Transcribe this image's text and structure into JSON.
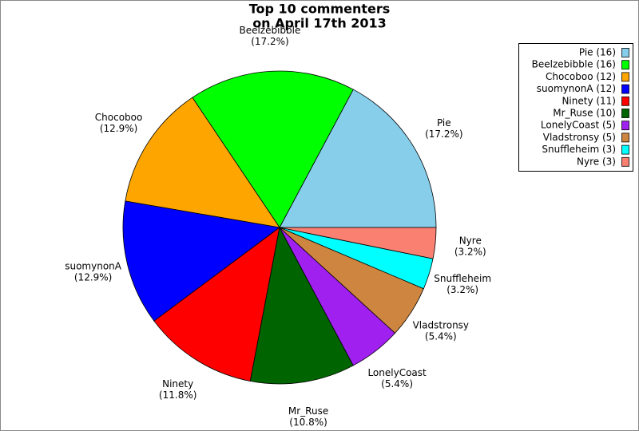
{
  "chart_data": {
    "type": "pie",
    "title": [
      "Top 10 commenters",
      "on April 17th 2013"
    ],
    "categories": [
      "Pie",
      "Beelzebibble",
      "Chocoboo",
      "suomynonA",
      "Ninety",
      "Mr_Ruse",
      "LonelyCoast",
      "Vladstronsy",
      "Snuffleheim",
      "Nyre"
    ],
    "values": [
      17.2,
      17.2,
      12.9,
      12.9,
      11.8,
      10.8,
      5.4,
      5.4,
      3.2,
      3.2
    ],
    "value_labels": [
      "(17.2%)",
      "(17.2%)",
      "(12.9%)",
      "(12.9%)",
      "(11.8%)",
      "(10.8%)",
      "(5.4%)",
      "(5.4%)",
      "(3.2%)",
      "(3.2%)"
    ],
    "legend_labels": [
      "Pie (16)",
      "Beelzebibble (16)",
      "Chocoboo (12)",
      "suomynonA (12)",
      "Ninety (11)",
      "Mr_Ruse (10)",
      "LonelyCoast (5)",
      "Vladstronsy (5)",
      "Snuffleheim (3)",
      "Nyre (3)"
    ],
    "colors": [
      "#87ceeb",
      "#00ff00",
      "#ffa500",
      "#0000ff",
      "#ff0000",
      "#006400",
      "#a020f0",
      "#cd853f",
      "#00ffff",
      "#fa8072"
    ],
    "legend": "top-right"
  }
}
